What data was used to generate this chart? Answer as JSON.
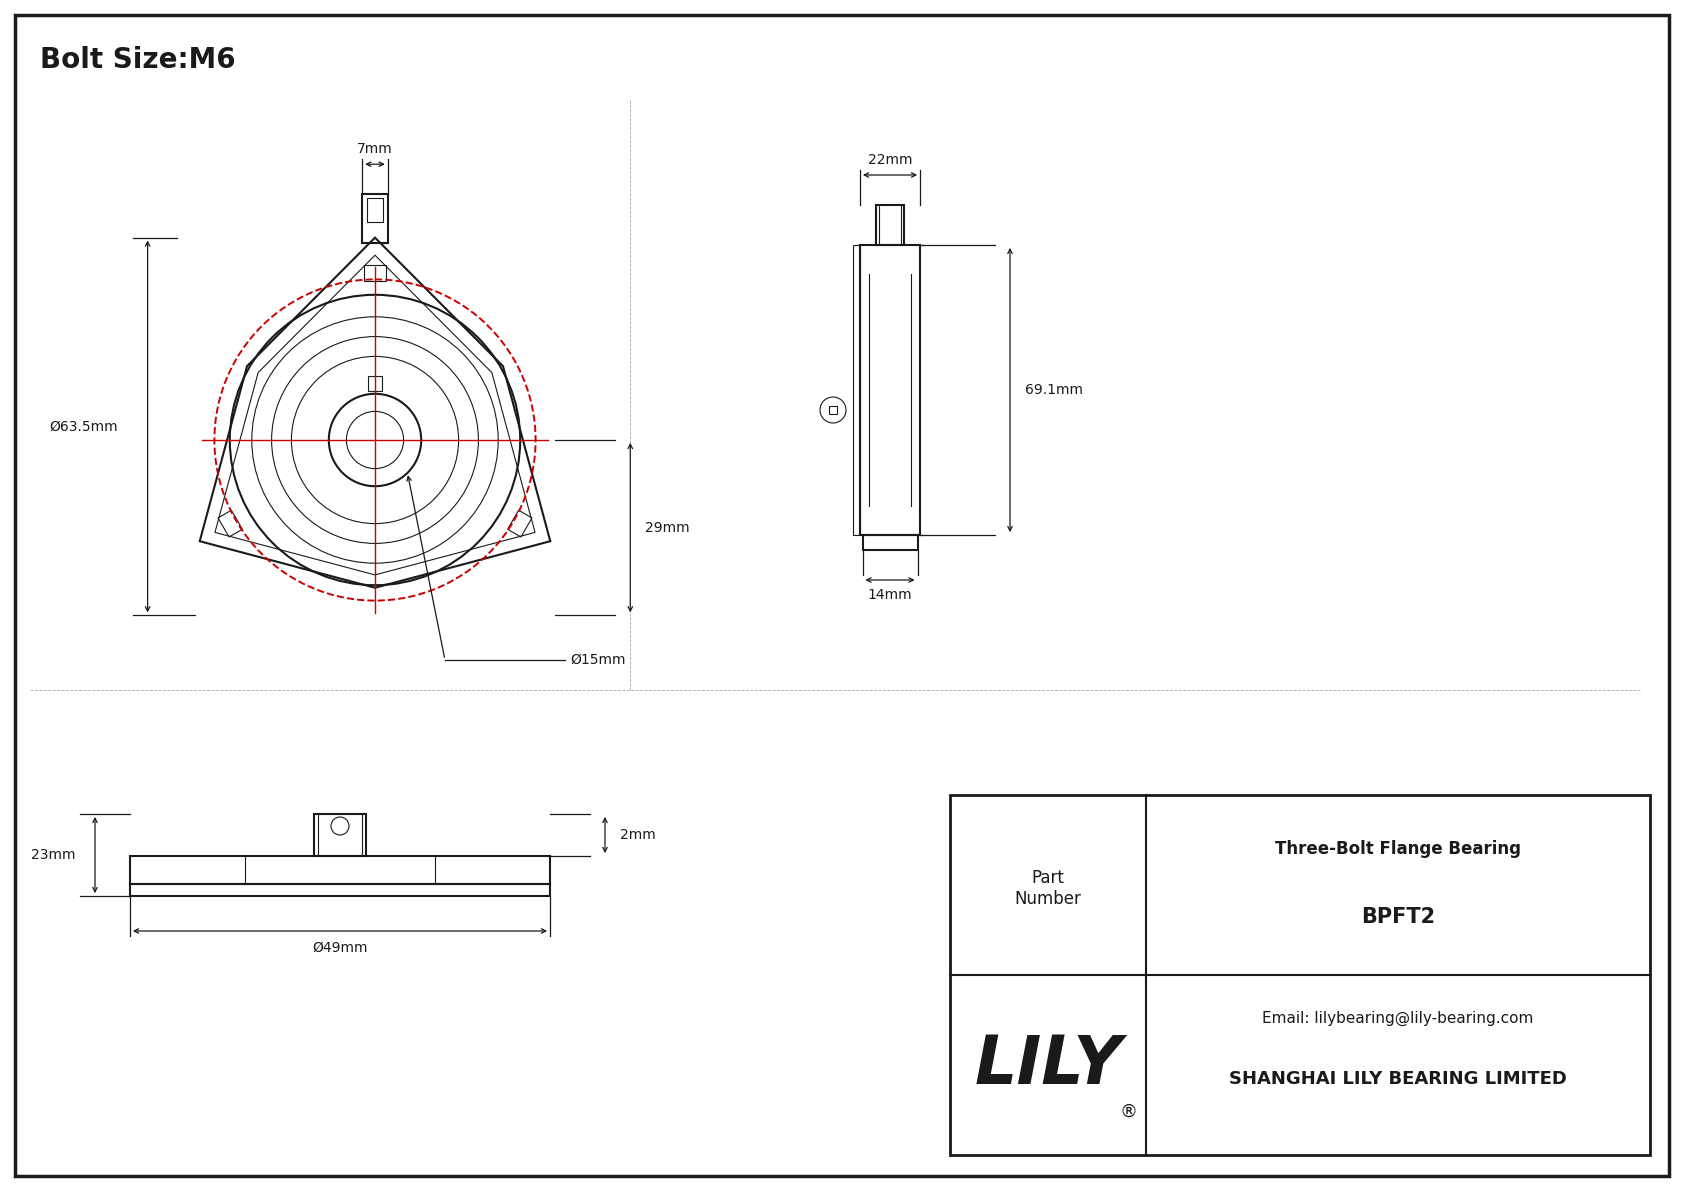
{
  "title_text": "Bolt Size:M6",
  "bg_color": "#ffffff",
  "line_color": "#1a1a1a",
  "red_color": "#cc0000",
  "company_name": "SHANGHAI LILY BEARING LIMITED",
  "company_email": "Email: lilybearing@lily-bearing.com",
  "part_number_label": "Part\nNumber",
  "part_number": "BPFT2",
  "part_desc": "Three-Bolt Flange Bearing",
  "lily_text": "LILY",
  "dim_7mm": "7mm",
  "dim_63_5mm": "Ø63.5mm",
  "dim_15mm": "Ø15mm",
  "dim_29mm": "29mm",
  "dim_22mm": "22mm",
  "dim_69_1mm": "69.1mm",
  "dim_14mm": "14mm",
  "dim_2mm": "2mm",
  "dim_23mm": "23mm",
  "dim_49mm": "Ø49mm"
}
